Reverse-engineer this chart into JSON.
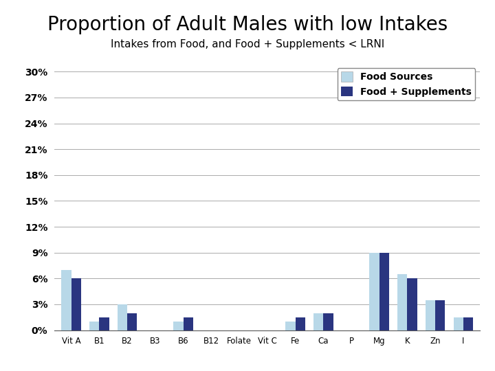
{
  "title_main": "Proportion of Adult Males with low Intakes",
  "title_sub": "Intakes from Food, and Food + Supplements < LRNI",
  "categories": [
    "Vit A",
    "B1",
    "B2",
    "B3",
    "B6",
    "B12",
    "Folate",
    "Vit C",
    "Fe",
    "Ca",
    "P",
    "Mg",
    "K",
    "Zn",
    "I"
  ],
  "food_sources": [
    7.0,
    1.0,
    3.0,
    0.0,
    1.0,
    0.0,
    0.0,
    0.0,
    1.0,
    2.0,
    0.0,
    9.0,
    6.5,
    3.5,
    1.5
  ],
  "food_supplements": [
    6.0,
    1.5,
    2.0,
    0.0,
    1.5,
    0.0,
    0.0,
    0.0,
    1.5,
    2.0,
    0.0,
    9.0,
    6.0,
    3.5,
    1.5
  ],
  "color_food": "#b8d8e8",
  "color_supp": "#2a3580",
  "legend_food": "Food Sources",
  "legend_supp": "Food + Supplements",
  "yticks": [
    0,
    3,
    6,
    9,
    12,
    15,
    18,
    21,
    24,
    27,
    30
  ],
  "ytick_labels": [
    "0%",
    "3%",
    "6%",
    "9%",
    "12%",
    "15%",
    "18%",
    "21%",
    "24%",
    "27%",
    "30%"
  ],
  "ylim": [
    0,
    31
  ],
  "background_color": "#ffffff",
  "title_main_fontsize": 20,
  "title_sub_fontsize": 11,
  "bar_width": 0.35
}
